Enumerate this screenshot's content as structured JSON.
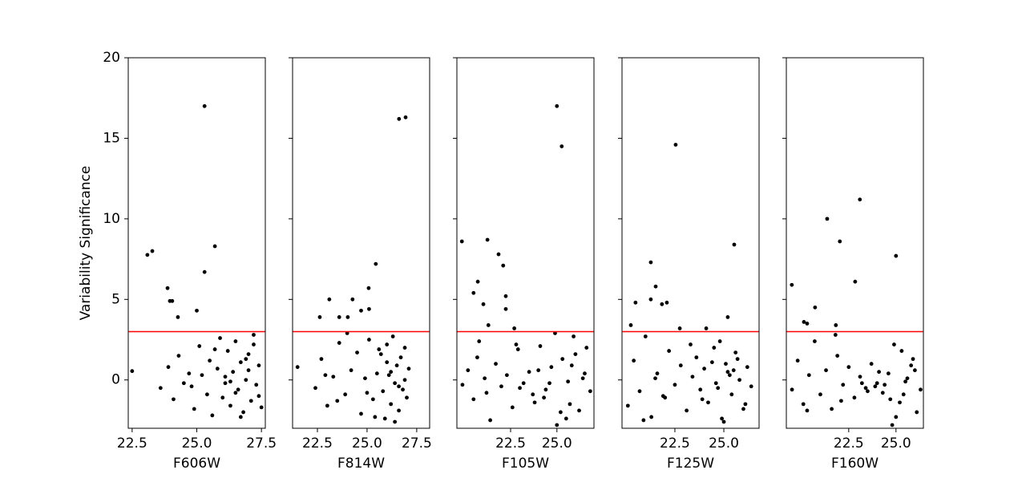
{
  "chart_data": [
    {
      "type": "scatter",
      "ylabel": "Variability Significance",
      "xlabel": "F606W",
      "color": "black",
      "xlim": [
        22.35,
        27.65
      ],
      "xticks": [
        22.5,
        {
          "value": 25,
          "label": "25.0"
        },
        27.5
      ],
      "ylim": [
        -3,
        20
      ],
      "yticks": [
        0,
        5,
        10,
        15,
        20
      ],
      "hline": {
        "value": 3,
        "color": "red"
      },
      "x": [
        23.6,
        23.9,
        24.1,
        24.3,
        24.5,
        24.7,
        24.9,
        25.1,
        25.2,
        25.4,
        25.5,
        25.6,
        25.8,
        25.9,
        26.0,
        26.1,
        26.2,
        26.3,
        26.4,
        26.5,
        26.6,
        26.7,
        26.8,
        26.9,
        27.0,
        27.1,
        27.2,
        27.3,
        27.4,
        27.5,
        26.3,
        26.7,
        27.0,
        25.7,
        26.5,
        27.2,
        24.8,
        26.9,
        27.4,
        26.1,
        25.3,
        23.09,
        23.28,
        25.7,
        25.3,
        23.87,
        23.96,
        24.05,
        25.0,
        24.27,
        22.5
      ],
      "values": [
        -0.5,
        0.8,
        -1.2,
        1.5,
        -0.2,
        0.4,
        -1.8,
        2.1,
        0.3,
        -0.9,
        1.2,
        -2.2,
        0.7,
        2.6,
        -1.1,
        0.2,
        1.8,
        -1.6,
        0.5,
        2.4,
        -0.6,
        1.1,
        -2.0,
        0.0,
        1.6,
        -1.3,
        2.8,
        -0.3,
        0.9,
        -1.7,
        -0.1,
        -2.3,
        0.6,
        1.9,
        -0.8,
        2.2,
        -0.4,
        1.3,
        -1.0,
        -0.2,
        17.0,
        7.76,
        8.0,
        8.3,
        6.7,
        5.7,
        4.9,
        4.9,
        4.3,
        3.9,
        0.55
      ]
    },
    {
      "type": "scatter",
      "xlabel": "F814W",
      "color": "black",
      "xlim": [
        21.25,
        28.15
      ],
      "xticks": [
        22.5,
        {
          "value": 25,
          "label": "25.0"
        },
        27.5
      ],
      "ylim": [
        -3,
        20
      ],
      "hline": {
        "value": 3,
        "color": "red"
      },
      "x": [
        21.5,
        22.4,
        22.7,
        23.0,
        23.3,
        23.6,
        23.9,
        24.2,
        24.5,
        24.7,
        24.9,
        25.1,
        25.3,
        25.5,
        25.6,
        25.8,
        25.9,
        26.0,
        26.1,
        26.2,
        26.3,
        26.4,
        26.5,
        26.6,
        26.7,
        26.8,
        26.9,
        27.0,
        25.4,
        26.2,
        26.6,
        24.0,
        25.7,
        26.9,
        23.5,
        26.4,
        27.1,
        25.0,
        26.0,
        22.9,
        26.61,
        26.94,
        25.44,
        25.08,
        24.27,
        23.1,
        22.62,
        23.6,
        24.03,
        24.7,
        25.1
      ],
      "values": [
        0.8,
        -0.5,
        1.3,
        -1.6,
        0.2,
        2.3,
        -0.9,
        0.6,
        1.7,
        -2.1,
        0.1,
        2.5,
        -1.2,
        0.4,
        1.9,
        -0.7,
        -2.4,
        1.1,
        0.3,
        -1.5,
        2.7,
        -0.2,
        0.9,
        -1.9,
        1.4,
        -0.6,
        2.0,
        -1.1,
        -2.3,
        0.5,
        -0.4,
        2.9,
        1.6,
        0.0,
        -1.3,
        -2.6,
        0.7,
        -0.8,
        2.2,
        0.3,
        16.2,
        16.3,
        7.2,
        5.7,
        5.0,
        5.0,
        3.9,
        3.9,
        3.9,
        4.3,
        4.4
      ]
    },
    {
      "type": "scatter",
      "xlabel": "F105W",
      "color": "black",
      "xlim": [
        19.6,
        27.0
      ],
      "xticks": [
        22.5,
        {
          "value": 25,
          "label": "25.0"
        }
      ],
      "ylim": [
        -3,
        20
      ],
      "hline": {
        "value": 3,
        "color": "red"
      },
      "x": [
        19.9,
        20.2,
        20.5,
        20.8,
        21.1,
        21.4,
        21.7,
        22.0,
        22.3,
        22.6,
        22.9,
        23.2,
        23.5,
        23.8,
        24.1,
        24.4,
        24.7,
        25.0,
        25.3,
        25.6,
        25.9,
        26.2,
        26.5,
        26.8,
        24.9,
        25.5,
        26.0,
        23.0,
        24.3,
        25.8,
        21.2,
        22.8,
        24.6,
        25.2,
        26.4,
        20.7,
        23.7,
        25.7,
        26.6,
        24.0,
        25.0,
        25.26,
        19.87,
        21.25,
        20.73,
        21.85,
        22.1,
        20.5,
        21.03,
        22.24,
        22.24,
        22.7,
        21.3
      ],
      "values": [
        -0.3,
        0.6,
        -1.2,
        2.4,
        0.1,
        -2.5,
        1.0,
        -0.4,
        0.3,
        -1.7,
        1.9,
        -0.2,
        0.5,
        -1.4,
        2.1,
        -0.6,
        0.8,
        -2.8,
        1.3,
        -0.1,
        2.7,
        -1.9,
        0.4,
        -0.7,
        2.9,
        -2.4,
        1.6,
        -0.5,
        -1.1,
        0.9,
        -0.8,
        2.2,
        -0.2,
        -2.0,
        0.1,
        1.4,
        -0.9,
        -1.5,
        2.0,
        0.6,
        17.0,
        14.5,
        8.6,
        8.7,
        6.1,
        7.8,
        7.1,
        5.4,
        4.7,
        5.2,
        4.4,
        3.2,
        3.4
      ]
    },
    {
      "type": "scatter",
      "xlabel": "F125W",
      "color": "black",
      "xlim": [
        19.8,
        26.8
      ],
      "xticks": [
        22.5,
        {
          "value": 25,
          "label": "25.0"
        }
      ],
      "ylim": [
        -3,
        20
      ],
      "hline": {
        "value": 3,
        "color": "red"
      },
      "x": [
        20.1,
        20.4,
        20.7,
        21.0,
        21.3,
        21.6,
        21.9,
        22.2,
        22.5,
        22.8,
        23.1,
        23.4,
        23.6,
        23.8,
        24.0,
        24.2,
        24.4,
        24.6,
        24.8,
        25.0,
        25.2,
        25.4,
        25.6,
        25.8,
        26.0,
        26.2,
        26.4,
        24.9,
        25.3,
        24.5,
        23.9,
        25.7,
        20.9,
        22.0,
        24.7,
        25.5,
        26.1,
        23.3,
        21.5,
        25.1,
        22.54,
        25.53,
        21.27,
        21.52,
        20.49,
        21.27,
        21.84,
        22.09,
        22.75,
        24.1,
        25.2,
        20.25
      ],
      "values": [
        -1.6,
        1.2,
        -0.7,
        2.7,
        -2.3,
        0.4,
        -1.0,
        1.8,
        -0.3,
        0.9,
        -1.9,
        0.2,
        1.4,
        -0.6,
        0.7,
        -1.4,
        1.1,
        -0.2,
        2.4,
        -2.6,
        0.5,
        -0.9,
        1.7,
        0.0,
        -1.8,
        0.8,
        -0.4,
        -2.4,
        0.3,
        2.0,
        -1.2,
        1.3,
        -2.5,
        -1.1,
        -0.5,
        0.6,
        -1.5,
        2.2,
        0.1,
        1.0,
        14.6,
        8.4,
        7.3,
        5.8,
        4.8,
        5.0,
        4.7,
        4.8,
        3.2,
        3.2,
        3.9,
        3.4
      ]
    },
    {
      "type": "scatter",
      "xlabel": "F160W",
      "color": "black",
      "xlim": [
        19.2,
        26.45
      ],
      "xticks": [
        22.5,
        {
          "value": 25,
          "label": "25.0"
        }
      ],
      "ylim": [
        -3,
        20
      ],
      "hline": {
        "value": 3,
        "color": "red"
      },
      "x": [
        19.5,
        19.8,
        20.1,
        20.4,
        20.7,
        21.0,
        21.3,
        21.6,
        21.9,
        22.2,
        22.5,
        22.8,
        23.1,
        23.4,
        23.7,
        24.0,
        24.3,
        24.6,
        24.9,
        25.2,
        25.5,
        25.8,
        26.1,
        26.3,
        24.1,
        24.7,
        25.3,
        23.9,
        25.0,
        25.6,
        20.3,
        21.8,
        23.5,
        24.4,
        25.9,
        22.1,
        24.8,
        25.4,
        26.0,
        23.2,
        23.09,
        21.36,
        22.03,
        25.0,
        22.84,
        19.49,
        20.72,
        20.13,
        20.3,
        21.82
      ],
      "values": [
        -0.6,
        1.2,
        -1.5,
        0.3,
        2.4,
        -0.9,
        0.6,
        -1.8,
        1.5,
        -0.3,
        0.8,
        -1.1,
        0.2,
        -0.5,
        1.0,
        -0.2,
        -0.8,
        0.4,
        2.2,
        -1.4,
        -0.1,
        0.9,
        -2.0,
        -0.6,
        0.5,
        -1.2,
        1.8,
        -0.4,
        -2.3,
        0.1,
        -1.9,
        2.8,
        -0.7,
        -0.3,
        1.3,
        -1.3,
        -2.8,
        -0.9,
        0.6,
        -0.2,
        11.2,
        10.0,
        8.6,
        7.7,
        6.1,
        5.9,
        4.5,
        3.6,
        3.5,
        3.4
      ]
    }
  ]
}
